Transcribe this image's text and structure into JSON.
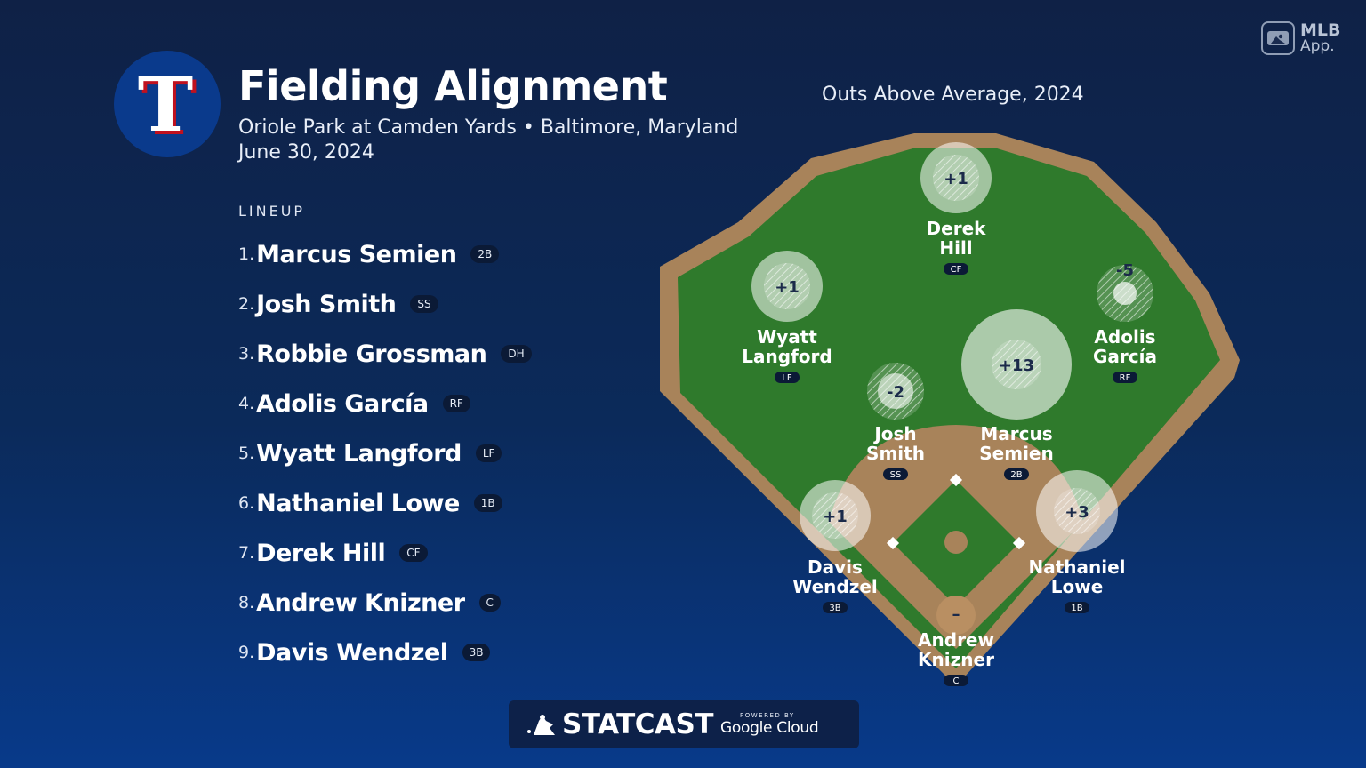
{
  "header": {
    "title": "Fielding Alignment",
    "venue_line": "Oriole Park at Camden Yards • Baltimore, Maryland",
    "date": "June 30, 2024",
    "team_logo_letter": "T"
  },
  "chart_caption": "Outs Above Average, 2024",
  "badge": {
    "brand": "MLB",
    "app": "App."
  },
  "lineup": {
    "heading": "LINEUP",
    "players": [
      {
        "number": "1.",
        "name": "Marcus Semien",
        "position": "2B"
      },
      {
        "number": "2.",
        "name": "Josh Smith",
        "position": "SS"
      },
      {
        "number": "3.",
        "name": "Robbie Grossman",
        "position": "DH"
      },
      {
        "number": "4.",
        "name": "Adolis García",
        "position": "RF"
      },
      {
        "number": "5.",
        "name": "Wyatt Langford",
        "position": "LF"
      },
      {
        "number": "6.",
        "name": "Nathaniel Lowe",
        "position": "1B"
      },
      {
        "number": "7.",
        "name": "Derek Hill",
        "position": "CF"
      },
      {
        "number": "8.",
        "name": "Andrew Knizner",
        "position": "C"
      },
      {
        "number": "9.",
        "name": "Davis Wendzel",
        "position": "3B"
      }
    ]
  },
  "field_players": {
    "cf": {
      "line1": "Derek",
      "line2": "Hill",
      "position": "CF",
      "oaa": "+1"
    },
    "lf": {
      "line1": "Wyatt",
      "line2": "Langford",
      "position": "LF",
      "oaa": "+1"
    },
    "rf": {
      "line1": "Adolis",
      "line2": "García",
      "position": "RF",
      "oaa": "-5"
    },
    "ss": {
      "line1": "Josh",
      "line2": "Smith",
      "position": "SS",
      "oaa": "-2"
    },
    "b2": {
      "line1": "Marcus",
      "line2": "Semien",
      "position": "2B",
      "oaa": "+13"
    },
    "b3": {
      "line1": "Davis",
      "line2": "Wendzel",
      "position": "3B",
      "oaa": "+1"
    },
    "b1": {
      "line1": "Nathaniel",
      "line2": "Lowe",
      "position": "1B",
      "oaa": "+3"
    },
    "c": {
      "line1": "Andrew",
      "line2": "Knizner",
      "position": "C",
      "oaa": "–"
    }
  },
  "footer": {
    "brand": "STATCAST",
    "powered_by": "POWERED BY",
    "partner": "Google Cloud"
  },
  "colors": {
    "background_top": "#0f2146",
    "background_bottom": "#083a8a",
    "grass": "#2f7a2c",
    "dirt": "#a8835a",
    "team_blue": "#0a3a8c",
    "team_red": "#c0111f"
  }
}
